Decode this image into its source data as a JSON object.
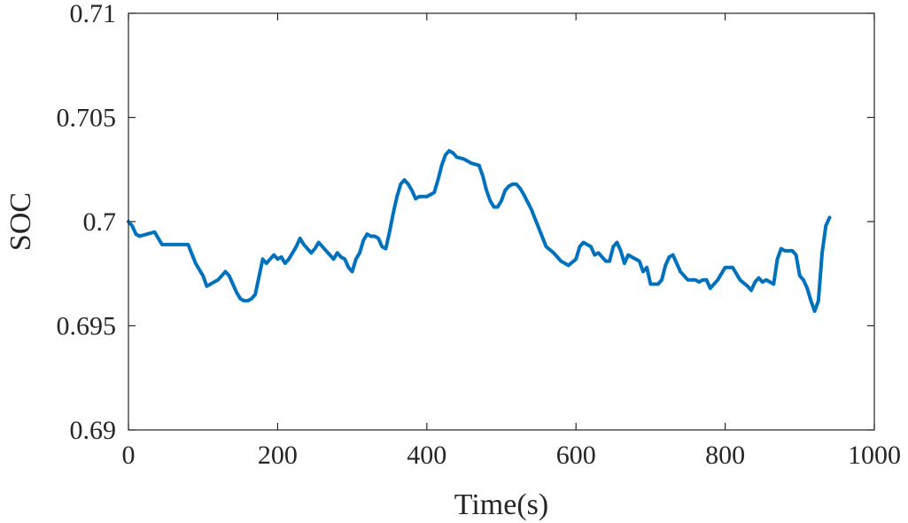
{
  "chart_data": {
    "type": "line",
    "title": "",
    "xlabel": "Time(s)",
    "ylabel": "SOC",
    "xlim": [
      0,
      1000
    ],
    "ylim": [
      0.69,
      0.71
    ],
    "x_ticks": [
      0,
      200,
      400,
      600,
      800,
      1000
    ],
    "x_tick_labels": [
      "0",
      "200",
      "400",
      "600",
      "800",
      "1000"
    ],
    "y_ticks": [
      0.69,
      0.695,
      0.7,
      0.705,
      0.71
    ],
    "y_tick_labels": [
      "0.69",
      "0.695",
      "0.7",
      "0.705",
      "0.71"
    ],
    "grid": false,
    "legend": "none",
    "series": [
      {
        "color": "#0072BD",
        "x": [
          0,
          5,
          10,
          15,
          25,
          35,
          45,
          55,
          70,
          80,
          90,
          100,
          105,
          110,
          120,
          130,
          135,
          140,
          145,
          150,
          155,
          160,
          165,
          170,
          180,
          185,
          190,
          195,
          200,
          205,
          210,
          215,
          220,
          225,
          230,
          235,
          240,
          245,
          250,
          255,
          260,
          265,
          270,
          275,
          280,
          285,
          290,
          295,
          300,
          305,
          310,
          315,
          320,
          325,
          330,
          335,
          340,
          345,
          350,
          355,
          360,
          365,
          370,
          375,
          380,
          385,
          390,
          395,
          400,
          405,
          410,
          415,
          420,
          425,
          430,
          435,
          440,
          450,
          460,
          470,
          475,
          480,
          485,
          490,
          495,
          500,
          505,
          510,
          515,
          520,
          525,
          530,
          540,
          550,
          560,
          570,
          580,
          590,
          600,
          605,
          610,
          615,
          620,
          625,
          630,
          635,
          640,
          645,
          650,
          655,
          660,
          665,
          670,
          675,
          680,
          685,
          690,
          695,
          700,
          705,
          710,
          715,
          720,
          725,
          730,
          735,
          740,
          750,
          760,
          765,
          770,
          775,
          780,
          790,
          800,
          810,
          820,
          830,
          835,
          840,
          845,
          850,
          855,
          860,
          865,
          870,
          875,
          880,
          885,
          890,
          895,
          900,
          905,
          910,
          915,
          920,
          925,
          930,
          935,
          940
        ],
        "y": [
          0.7,
          0.6998,
          0.6994,
          0.6993,
          0.6994,
          0.6995,
          0.6989,
          0.6989,
          0.6989,
          0.6989,
          0.698,
          0.6974,
          0.6969,
          0.697,
          0.6972,
          0.6976,
          0.6974,
          0.697,
          0.6966,
          0.6963,
          0.6962,
          0.6962,
          0.6963,
          0.6965,
          0.6982,
          0.698,
          0.6982,
          0.6984,
          0.6982,
          0.6983,
          0.698,
          0.6982,
          0.6985,
          0.6988,
          0.6992,
          0.6989,
          0.6987,
          0.6985,
          0.6987,
          0.699,
          0.6988,
          0.6986,
          0.6984,
          0.6982,
          0.6985,
          0.6983,
          0.6982,
          0.6978,
          0.6976,
          0.6982,
          0.6985,
          0.6991,
          0.6994,
          0.6993,
          0.6993,
          0.6992,
          0.6988,
          0.6987,
          0.6995,
          0.7004,
          0.7012,
          0.7018,
          0.702,
          0.7018,
          0.7015,
          0.7011,
          0.7012,
          0.7012,
          0.7012,
          0.7013,
          0.7014,
          0.702,
          0.7027,
          0.7032,
          0.7034,
          0.7033,
          0.7031,
          0.703,
          0.7028,
          0.7027,
          0.7022,
          0.7015,
          0.701,
          0.7007,
          0.7007,
          0.701,
          0.7015,
          0.7017,
          0.7018,
          0.7018,
          0.7016,
          0.7013,
          0.7006,
          0.6997,
          0.6988,
          0.6985,
          0.6981,
          0.6979,
          0.6982,
          0.6988,
          0.699,
          0.6989,
          0.6988,
          0.6984,
          0.6985,
          0.6983,
          0.6981,
          0.6981,
          0.6988,
          0.699,
          0.6986,
          0.698,
          0.6984,
          0.6983,
          0.6982,
          0.6981,
          0.6976,
          0.6978,
          0.697,
          0.697,
          0.697,
          0.6972,
          0.6979,
          0.6983,
          0.6984,
          0.698,
          0.6976,
          0.6972,
          0.6972,
          0.6971,
          0.6972,
          0.6972,
          0.6968,
          0.6972,
          0.6978,
          0.6978,
          0.6972,
          0.6969,
          0.6967,
          0.6971,
          0.6973,
          0.6971,
          0.6972,
          0.6971,
          0.697,
          0.6982,
          0.6987,
          0.6986,
          0.6986,
          0.6986,
          0.6984,
          0.6974,
          0.6972,
          0.6968,
          0.6962,
          0.6957,
          0.6962,
          0.6985,
          0.6998,
          0.7002
        ]
      }
    ]
  }
}
